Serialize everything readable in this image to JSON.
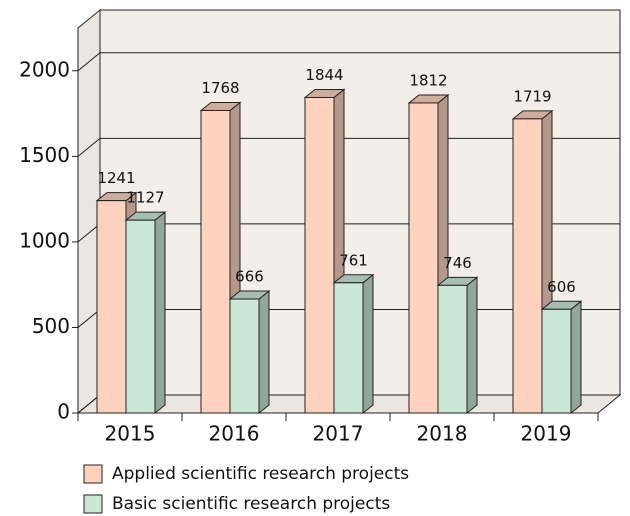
{
  "chart_data": {
    "type": "bar3d",
    "categories": [
      "2015",
      "2016",
      "2017",
      "2018",
      "2019"
    ],
    "series": [
      {
        "name": "Applied scientific research projects",
        "color": "#fdd3bf",
        "values": [
          1241,
          1768,
          1844,
          1812,
          1719
        ]
      },
      {
        "name": "Basic scientific research projects",
        "color": "#cbe8d6",
        "values": [
          1127,
          666,
          761,
          746,
          606
        ]
      }
    ],
    "ylim": [
      0,
      2250
    ],
    "yticks": [
      0,
      500,
      1000,
      1500,
      2000
    ],
    "grid": true
  }
}
